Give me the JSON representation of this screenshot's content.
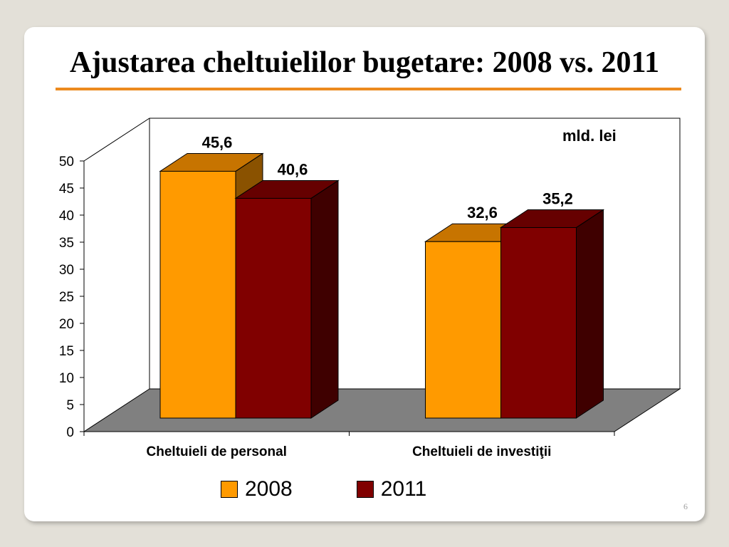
{
  "slide": {
    "title": "Ajustarea cheltuielilor bugetare: 2008 vs. 2011",
    "page_number": "6",
    "unit_label": "mld. lei"
  },
  "colors": {
    "series_2008": "#ff9a00",
    "series_2008_top": "#c77400",
    "series_2008_side": "#8a5200",
    "series_2011": "#800000",
    "series_2011_top": "#660000",
    "series_2011_side": "#3f0000",
    "floor": "#808080",
    "title_rule": "#ec8a1e"
  },
  "chart_data": {
    "type": "bar",
    "categories": [
      "Cheltuieli de personal",
      "Cheltuieli de investiţii"
    ],
    "series": [
      {
        "name": "2008",
        "values": [
          45.6,
          32.6
        ],
        "labels": [
          "45,6",
          "32,6"
        ]
      },
      {
        "name": "2011",
        "values": [
          40.6,
          35.2
        ],
        "labels": [
          "40,6",
          "35,2"
        ]
      }
    ],
    "ylim": [
      0,
      50
    ],
    "yticks": [
      "0",
      "5",
      "10",
      "15",
      "20",
      "25",
      "30",
      "35",
      "40",
      "45",
      "50"
    ],
    "grid": false,
    "legend": "bottom",
    "style": "3d-clustered"
  }
}
